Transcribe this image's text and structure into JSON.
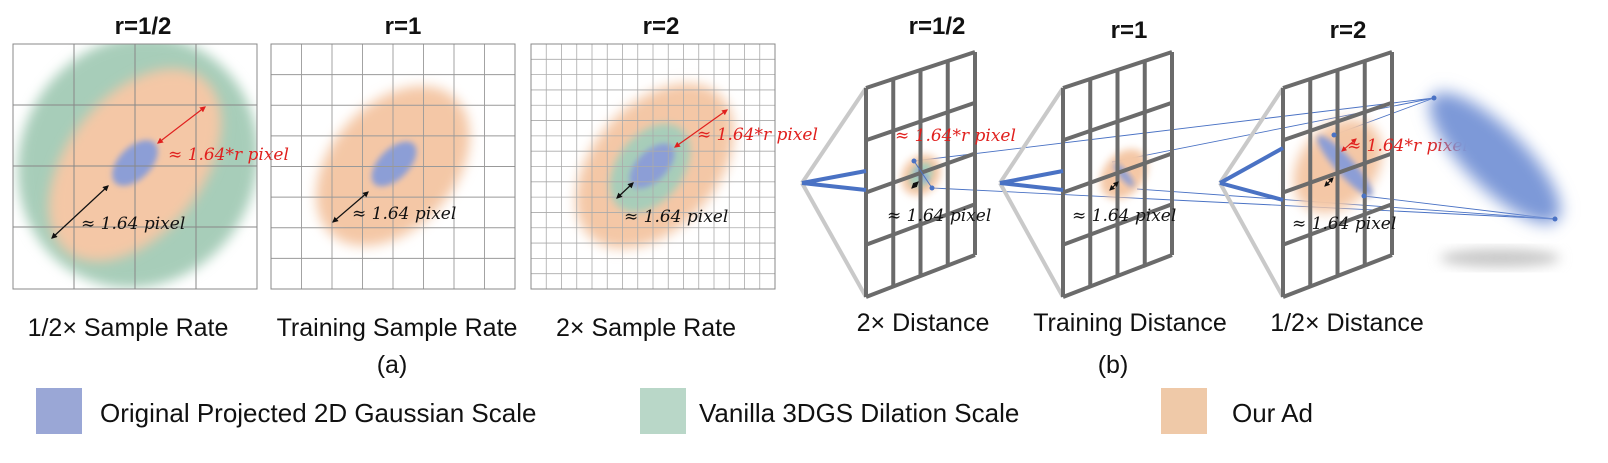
{
  "panel_a": {
    "titles": [
      "r=1/2",
      "r=1",
      "r=2"
    ],
    "captions": [
      "1/2× Sample Rate",
      "Training Sample Rate",
      "2× Sample Rate"
    ],
    "label": "(a)"
  },
  "panel_b": {
    "titles": [
      "r=1/2",
      "r=1",
      "r=2"
    ],
    "captions": [
      "2× Distance",
      "Training Distance",
      "1/2× Distance"
    ],
    "label": "(b)"
  },
  "annotations": {
    "pixel": "≈ 1.64 pixel",
    "r_pixel": "≈ 1.64*r pixel"
  },
  "legend": {
    "items": [
      {
        "label": "Original Projected 2D Gaussian Scale",
        "color": "#9aa7d6"
      },
      {
        "label": "Vanilla 3DGS Dilation Scale",
        "color": "#b9d7c8"
      },
      {
        "label": "Our Ad",
        "color": "#efc9a8"
      }
    ]
  },
  "colors": {
    "blue": "#8c9ed6",
    "green": "#a7cdb9",
    "orange": "#f4c7a6",
    "red": "#e0201e",
    "grid": "#777777",
    "frame": "#6b6b6b",
    "camera_blue": "#4a72c4"
  }
}
